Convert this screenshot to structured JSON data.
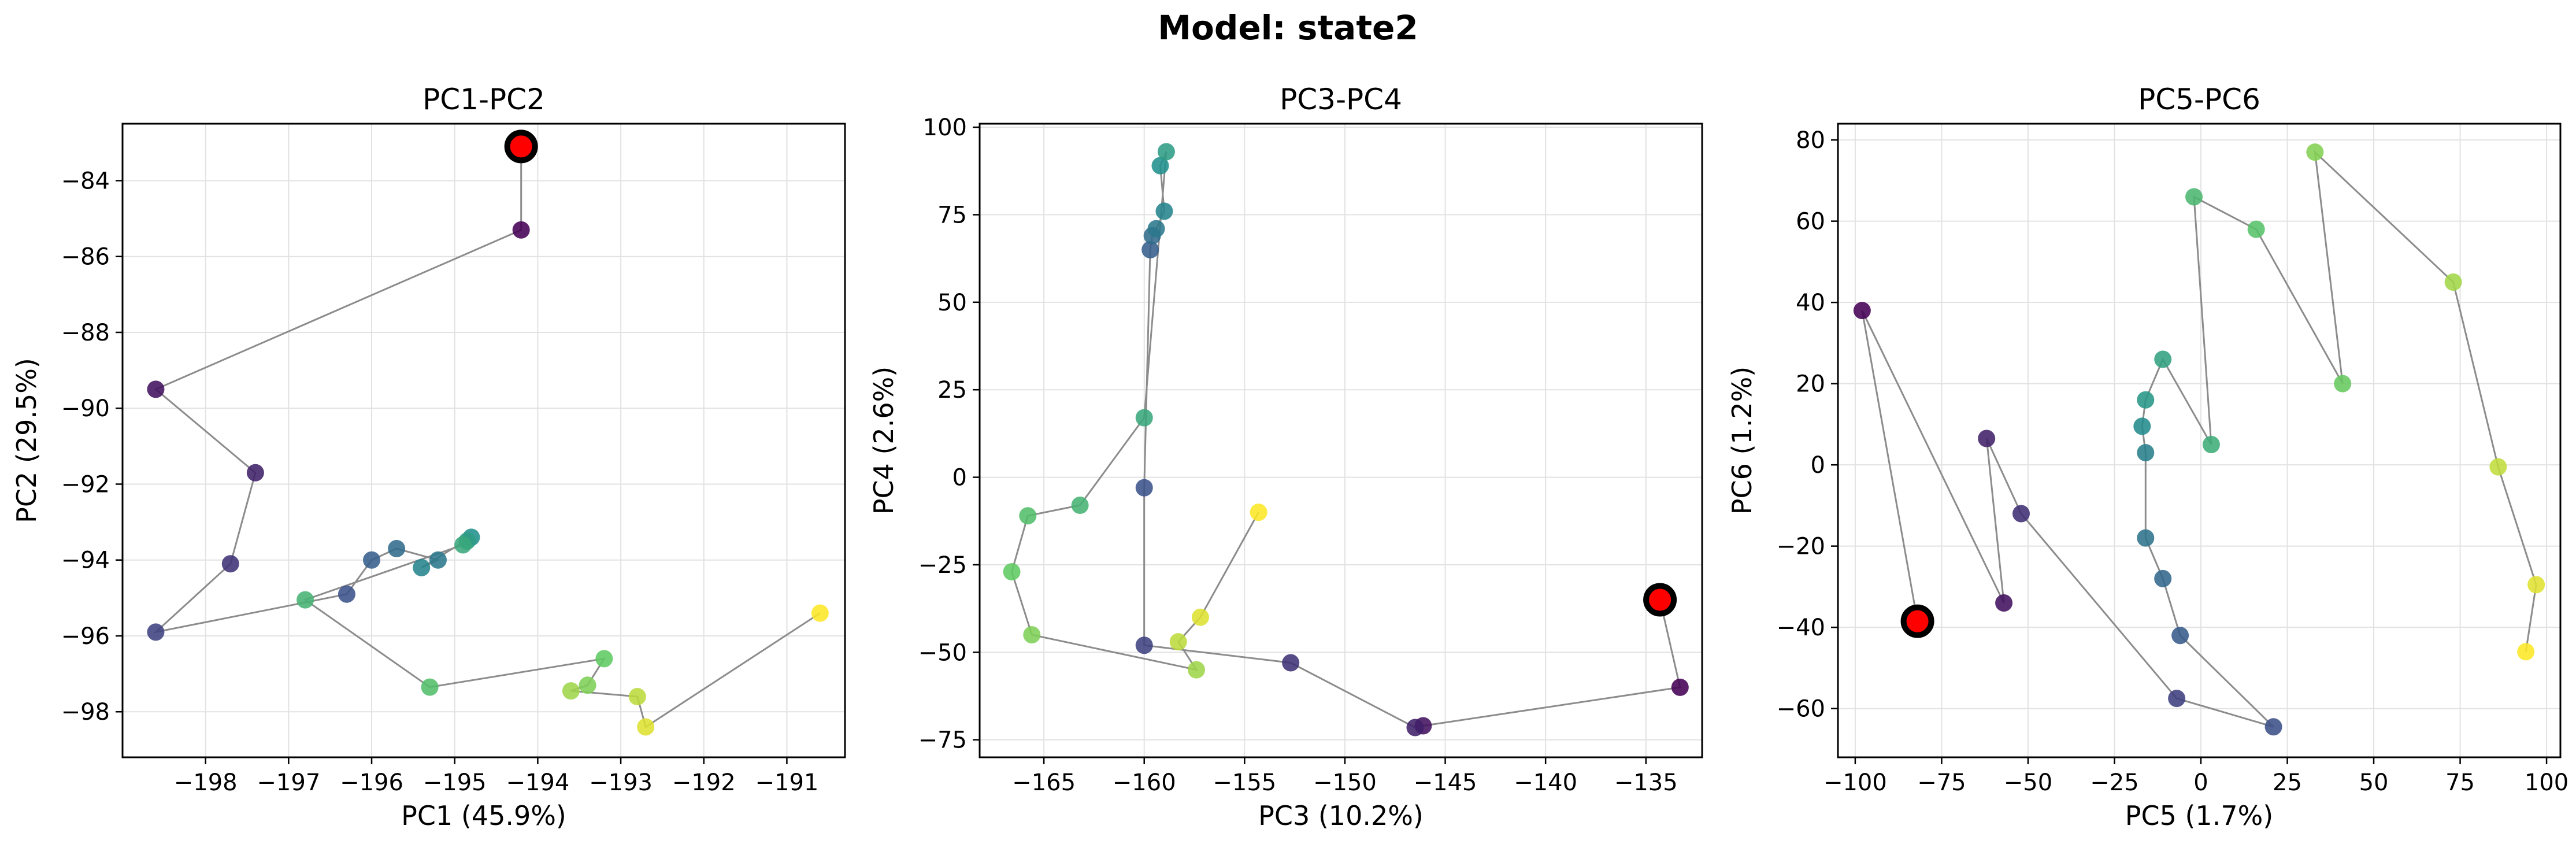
{
  "figure": {
    "suptitle": "Model: state2"
  },
  "chart_data": [
    {
      "type": "scatter",
      "title": "PC1-PC2",
      "xlabel": "PC1 (45.9%)",
      "ylabel": "PC2 (29.5%)",
      "xlim": [
        -199.0,
        -190.3
      ],
      "ylim": [
        -99.2,
        -82.5
      ],
      "xticks": [
        -198,
        -197,
        -196,
        -195,
        -194,
        -193,
        -192,
        -191
      ],
      "yticks": [
        -98,
        -96,
        -94,
        -92,
        -90,
        -88,
        -86,
        -84
      ],
      "grid": true,
      "color_map": "viridis",
      "x": [
        -194.2,
        -198.6,
        -197.4,
        -197.7,
        -198.6,
        -196.3,
        -196.0,
        -195.7,
        -195.2,
        -195.4,
        -194.8,
        -194.85,
        -194.9,
        -196.8,
        -195.3,
        -193.2,
        -193.4,
        -193.6,
        -192.8,
        -192.7,
        -190.6
      ],
      "y": [
        -85.3,
        -89.5,
        -91.7,
        -94.1,
        -95.9,
        -94.9,
        -94.0,
        -93.7,
        -94.0,
        -94.2,
        -93.4,
        -93.5,
        -93.6,
        -95.05,
        -97.35,
        -96.6,
        -97.3,
        -97.45,
        -97.6,
        -98.4,
        -95.4
      ],
      "marker_point": {
        "x": -194.2,
        "y": -83.1,
        "color": "#ff0000",
        "edge": "#000000"
      }
    },
    {
      "type": "scatter",
      "title": "PC3-PC4",
      "xlabel": "PC3 (10.2%)",
      "ylabel": "PC4 (2.6%)",
      "xlim": [
        -168.2,
        -132.2
      ],
      "ylim": [
        -80,
        101
      ],
      "xticks": [
        -165,
        -160,
        -155,
        -150,
        -145,
        -140,
        -135
      ],
      "yticks": [
        -75,
        -50,
        -25,
        0,
        25,
        50,
        75,
        100
      ],
      "grid": true,
      "color_map": "viridis",
      "x": [
        -133.3,
        -146.1,
        -146.5,
        -152.7,
        -160.0,
        -160.0,
        -159.7,
        -159.6,
        -159.4,
        -159.0,
        -159.2,
        -158.9,
        -160.0,
        -163.2,
        -165.8,
        -166.6,
        -165.6,
        -157.4,
        -158.3,
        -157.2,
        -154.3
      ],
      "y": [
        -60,
        -71,
        -71.5,
        -53,
        -48,
        -3,
        65,
        69,
        71,
        76,
        89,
        93,
        17,
        -8,
        -11,
        -27,
        -45,
        -55,
        -47,
        -40,
        -10
      ],
      "marker_point": {
        "x": -134.3,
        "y": -35,
        "color": "#ff0000",
        "edge": "#000000"
      }
    },
    {
      "type": "scatter",
      "title": "PC5-PC6",
      "xlabel": "PC5 (1.7%)",
      "ylabel": "PC6 (1.2%)",
      "xlim": [
        -105,
        104
      ],
      "ylim": [
        -72,
        84
      ],
      "xticks": [
        -100,
        -75,
        -50,
        -25,
        0,
        25,
        50,
        75,
        100
      ],
      "yticks": [
        -60,
        -40,
        -20,
        0,
        20,
        40,
        60,
        80
      ],
      "grid": true,
      "color_map": "viridis",
      "x": [
        -98,
        -57,
        -62,
        -52,
        -7,
        21,
        -6,
        -11,
        -16,
        -16,
        -17,
        -16,
        -11,
        3,
        -2,
        16,
        41,
        33,
        73,
        86,
        97,
        94
      ],
      "y": [
        38,
        -34,
        6.5,
        -12,
        -57.5,
        -64.5,
        -42,
        -28,
        -18,
        3,
        9.5,
        16,
        26,
        5,
        66,
        58,
        20,
        77,
        45,
        -0.5,
        -29.5,
        -46
      ],
      "marker_point": {
        "x": -82,
        "y": -38.5,
        "color": "#ff0000",
        "edge": "#000000"
      }
    }
  ]
}
